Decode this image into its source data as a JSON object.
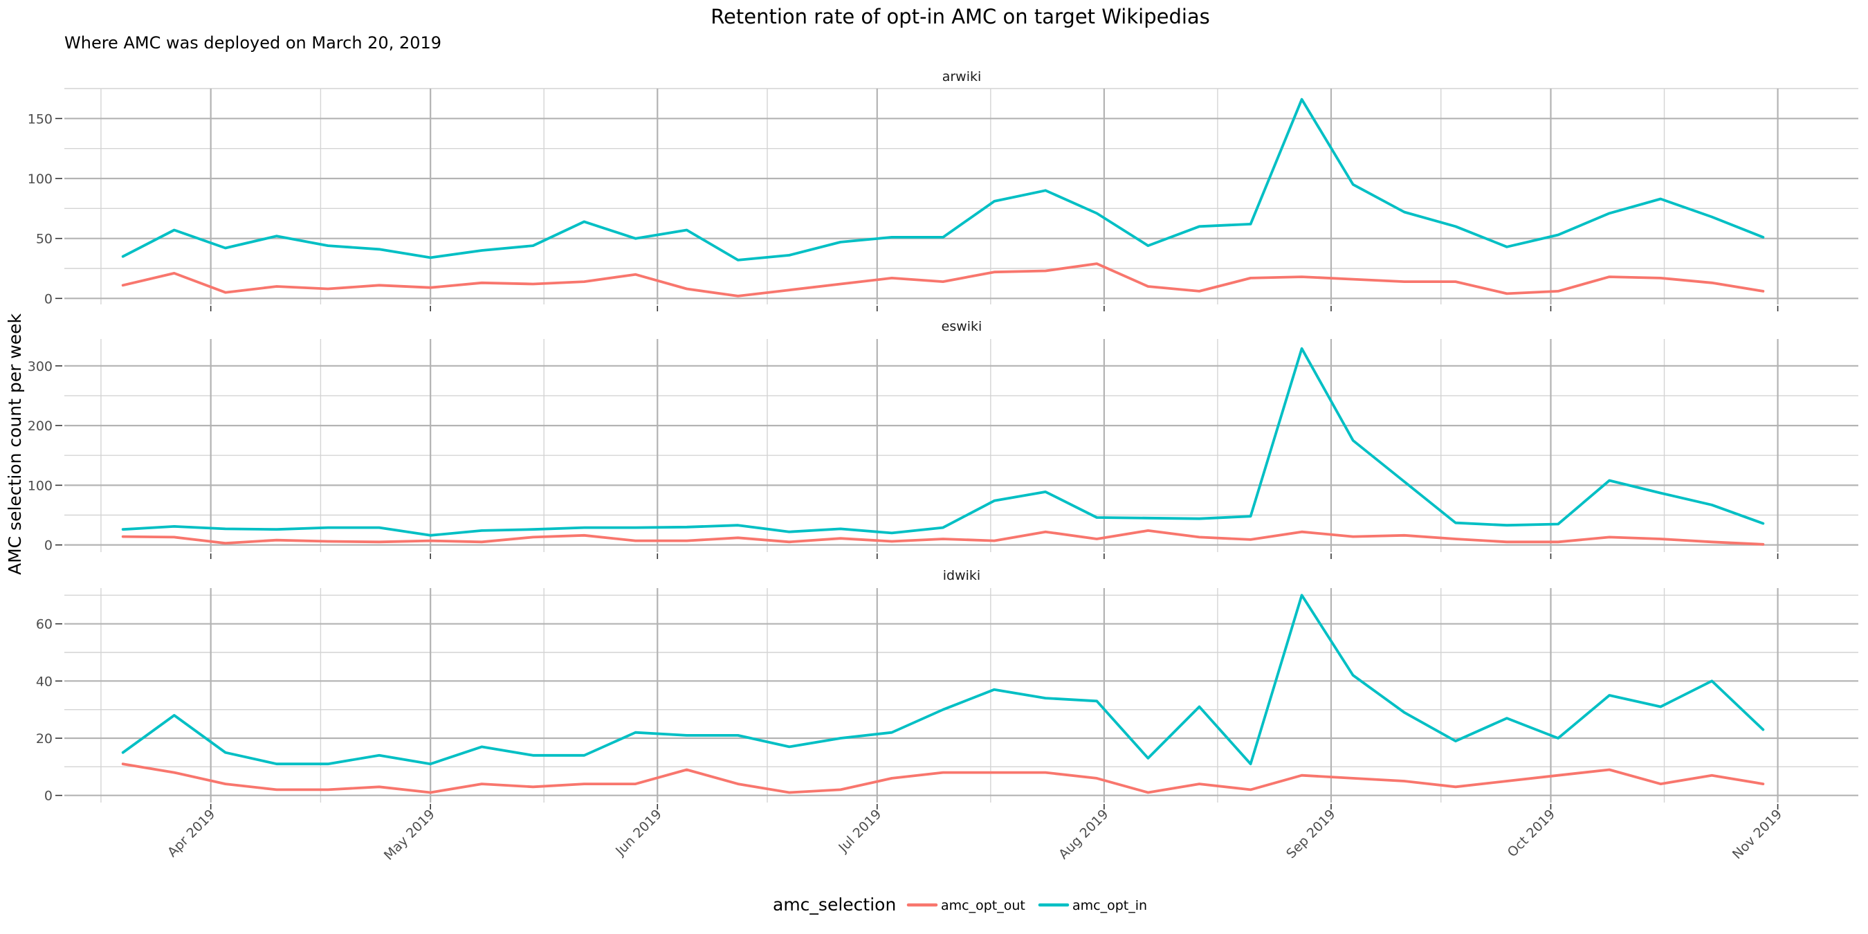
{
  "chart_data": {
    "type": "line",
    "title": "Retention rate of opt-in AMC on target Wikipedias",
    "subtitle": "Where AMC was deployed on March 20, 2019",
    "ylabel": "AMC selection count per week",
    "xlabel": "",
    "x_start": "2019-03-20",
    "x_step_days": 7,
    "x_range": [
      "2019-03-12",
      "2019-11-12"
    ],
    "x_ticks": [
      {
        "date": "2019-04-01",
        "label": "Apr 2019"
      },
      {
        "date": "2019-05-01",
        "label": "May 2019"
      },
      {
        "date": "2019-06-01",
        "label": "Jun 2019"
      },
      {
        "date": "2019-07-01",
        "label": "Jul 2019"
      },
      {
        "date": "2019-08-01",
        "label": "Aug 2019"
      },
      {
        "date": "2019-09-01",
        "label": "Sep 2019"
      },
      {
        "date": "2019-10-01",
        "label": "Oct 2019"
      },
      {
        "date": "2019-11-01",
        "label": "Nov 2019"
      }
    ],
    "legend": {
      "title": "amc_selection",
      "position": "bottom",
      "entries": [
        {
          "name": "amc_opt_out",
          "color": "#F8766D"
        },
        {
          "name": "amc_opt_in",
          "color": "#00BFC4"
        }
      ]
    },
    "panels": [
      {
        "name": "arwiki",
        "ylim": [
          -5,
          175
        ],
        "y_ticks": [
          0,
          50,
          100,
          150
        ],
        "y_tick_labels": [
          "0",
          "50",
          "100",
          "150"
        ],
        "series": [
          {
            "name": "amc_opt_out",
            "color": "#F8766D",
            "values": [
              11,
              21,
              5,
              10,
              8,
              11,
              9,
              13,
              12,
              14,
              20,
              8,
              2,
              7,
              12,
              17,
              14,
              22,
              23,
              29,
              10,
              6,
              17,
              18,
              16,
              14,
              14,
              4,
              6,
              18,
              17,
              13,
              6
            ]
          },
          {
            "name": "amc_opt_in",
            "color": "#00BFC4",
            "values": [
              35,
              57,
              42,
              52,
              44,
              41,
              34,
              40,
              44,
              64,
              50,
              57,
              32,
              36,
              47,
              51,
              51,
              81,
              90,
              71,
              44,
              60,
              62,
              166,
              95,
              72,
              60,
              43,
              53,
              71,
              83,
              68,
              51
            ]
          }
        ]
      },
      {
        "name": "eswiki",
        "ylim": [
          -12,
          345
        ],
        "y_ticks": [
          0,
          100,
          200,
          300
        ],
        "y_tick_labels": [
          "0",
          "100",
          "200",
          "300"
        ],
        "series": [
          {
            "name": "amc_opt_out",
            "color": "#F8766D",
            "values": [
              14,
              13,
              3,
              8,
              6,
              5,
              7,
              5,
              13,
              16,
              7,
              7,
              12,
              5,
              11,
              6,
              10,
              7,
              22,
              10,
              24,
              13,
              9,
              22,
              14,
              16,
              10,
              5,
              5,
              13,
              10,
              5,
              1
            ]
          },
          {
            "name": "amc_opt_in",
            "color": "#00BFC4",
            "values": [
              26,
              31,
              27,
              26,
              29,
              29,
              16,
              24,
              26,
              29,
              29,
              30,
              33,
              22,
              27,
              20,
              29,
              74,
              89,
              46,
              45,
              44,
              48,
              329,
              175,
              106,
              37,
              33,
              35,
              108,
              87,
              67,
              36
            ]
          }
        ]
      },
      {
        "name": "idwiki",
        "ylim": [
          -2.5,
          72.5
        ],
        "y_ticks": [
          0,
          20,
          40,
          60
        ],
        "y_tick_labels": [
          "0",
          "20",
          "40",
          "60"
        ],
        "series": [
          {
            "name": "amc_opt_out",
            "color": "#F8766D",
            "values": [
              11,
              8,
              4,
              2,
              2,
              3,
              1,
              4,
              3,
              4,
              4,
              9,
              4,
              1,
              2,
              6,
              8,
              8,
              8,
              6,
              1,
              4,
              2,
              7,
              6,
              5,
              3,
              5,
              7,
              9,
              4,
              7,
              4
            ]
          },
          {
            "name": "amc_opt_in",
            "color": "#00BFC4",
            "values": [
              15,
              28,
              15,
              11,
              11,
              14,
              11,
              17,
              14,
              14,
              22,
              21,
              21,
              17,
              20,
              22,
              30,
              37,
              34,
              33,
              13,
              31,
              11,
              70,
              42,
              29,
              19,
              27,
              20,
              35,
              31,
              40,
              23
            ]
          }
        ]
      }
    ]
  }
}
